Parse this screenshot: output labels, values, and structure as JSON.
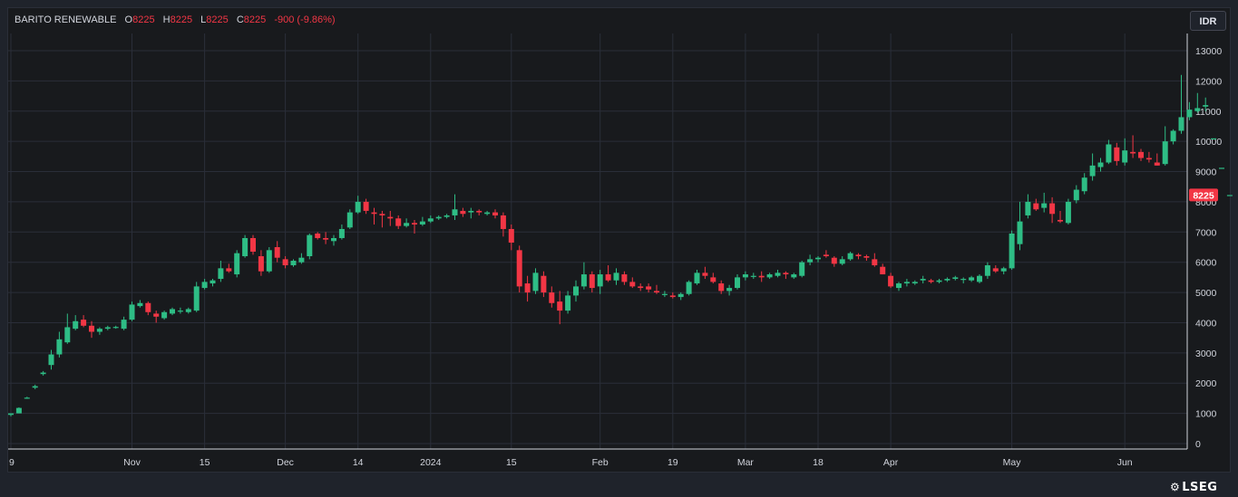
{
  "legend": {
    "symbol": "BARITO RENEWABLE",
    "o_label": "O",
    "o_value": "8225",
    "h_label": "H",
    "h_value": "8225",
    "l_label": "L",
    "l_value": "8225",
    "c_label": "C",
    "c_value": "8225",
    "change": "-900 (-9.86%)"
  },
  "currency_button": "IDR",
  "last_price_label": "8225",
  "brand": {
    "mark": "⚙",
    "text": "LSEG"
  },
  "colors": {
    "up": "#26a69a",
    "up_bright": "#2ebd85",
    "down": "#f23645",
    "background": "#181a1d",
    "grid": "#2a2e39",
    "text": "#d1d4dc"
  },
  "chart_data": {
    "type": "candlestick",
    "y_ticks": [
      "0",
      "1000",
      "2000",
      "3000",
      "4000",
      "5000",
      "6000",
      "7000",
      "8000",
      "9000",
      "10000",
      "11000",
      "12000",
      "13000"
    ],
    "ylim": [
      0,
      13500
    ],
    "x_ticks": [
      {
        "label": "9",
        "i": 0
      },
      {
        "label": "Nov",
        "i": 15
      },
      {
        "label": "15",
        "i": 24
      },
      {
        "label": "Dec",
        "i": 34
      },
      {
        "label": "14",
        "i": 43
      },
      {
        "label": "2024",
        "i": 52
      },
      {
        "label": "15",
        "i": 62
      },
      {
        "label": "Feb",
        "i": 73
      },
      {
        "label": "19",
        "i": 82
      },
      {
        "label": "Mar",
        "i": 91
      },
      {
        "label": "18",
        "i": 100
      },
      {
        "label": "Apr",
        "i": 109
      },
      {
        "label": "May",
        "i": 124
      },
      {
        "label": "Jun",
        "i": 138
      }
    ],
    "grid": true,
    "candles": [
      [
        950,
        1000,
        900,
        1000
      ],
      [
        1000,
        1200,
        1000,
        1180
      ],
      [
        1500,
        1550,
        1480,
        1520
      ],
      [
        1850,
        1950,
        1800,
        1900
      ],
      [
        2300,
        2400,
        2250,
        2350
      ],
      [
        2600,
        3100,
        2450,
        2950
      ],
      [
        2950,
        3700,
        2850,
        3450
      ],
      [
        3350,
        4300,
        3300,
        3850
      ],
      [
        3800,
        4250,
        3750,
        4050
      ],
      [
        4100,
        4250,
        3850,
        3900
      ],
      [
        3900,
        4050,
        3500,
        3700
      ],
      [
        3700,
        3850,
        3600,
        3800
      ],
      [
        3800,
        3900,
        3750,
        3850
      ],
      [
        3850,
        3900,
        3800,
        3860
      ],
      [
        3800,
        4200,
        3750,
        4100
      ],
      [
        4100,
        4700,
        4050,
        4600
      ],
      [
        4550,
        4750,
        4500,
        4650
      ],
      [
        4650,
        4700,
        4250,
        4350
      ],
      [
        4300,
        4400,
        4000,
        4200
      ],
      [
        4150,
        4400,
        4100,
        4350
      ],
      [
        4300,
        4500,
        4250,
        4450
      ],
      [
        4400,
        4500,
        4300,
        4400
      ],
      [
        4350,
        4500,
        4300,
        4450
      ],
      [
        4400,
        5350,
        4350,
        5200
      ],
      [
        5150,
        5450,
        5100,
        5350
      ],
      [
        5300,
        5450,
        5200,
        5400
      ],
      [
        5450,
        6050,
        5350,
        5800
      ],
      [
        5800,
        5950,
        5650,
        5700
      ],
      [
        5600,
        6400,
        5500,
        6300
      ],
      [
        6200,
        6900,
        6150,
        6800
      ],
      [
        6800,
        6900,
        6250,
        6350
      ],
      [
        6200,
        6400,
        5550,
        5700
      ],
      [
        5700,
        6500,
        5650,
        6400
      ],
      [
        6500,
        6700,
        6000,
        6150
      ],
      [
        6100,
        6200,
        5800,
        5900
      ],
      [
        5900,
        6100,
        5850,
        6050
      ],
      [
        6000,
        6300,
        5950,
        6150
      ],
      [
        6200,
        6950,
        6100,
        6900
      ],
      [
        6950,
        7000,
        6750,
        6800
      ],
      [
        6800,
        7000,
        6600,
        6750
      ],
      [
        6700,
        6900,
        6550,
        6800
      ],
      [
        6800,
        7250,
        6750,
        7100
      ],
      [
        7150,
        7750,
        7100,
        7650
      ],
      [
        7650,
        8200,
        7600,
        8000
      ],
      [
        8000,
        8100,
        7600,
        7700
      ],
      [
        7650,
        7800,
        7250,
        7600
      ],
      [
        7600,
        7700,
        7150,
        7550
      ],
      [
        7500,
        7700,
        7200,
        7450
      ],
      [
        7450,
        7550,
        7100,
        7200
      ],
      [
        7200,
        7450,
        7150,
        7300
      ],
      [
        7300,
        7400,
        6950,
        7250
      ],
      [
        7250,
        7500,
        7200,
        7350
      ],
      [
        7350,
        7550,
        7300,
        7450
      ],
      [
        7450,
        7550,
        7400,
        7500
      ],
      [
        7500,
        7600,
        7450,
        7550
      ],
      [
        7550,
        8250,
        7400,
        7750
      ],
      [
        7700,
        7800,
        7500,
        7600
      ],
      [
        7650,
        7800,
        7450,
        7700
      ],
      [
        7700,
        7750,
        7550,
        7650
      ],
      [
        7600,
        7700,
        7550,
        7650
      ],
      [
        7650,
        7750,
        7450,
        7550
      ],
      [
        7550,
        7650,
        6850,
        7100
      ],
      [
        7100,
        7250,
        6400,
        6650
      ],
      [
        6400,
        6550,
        5000,
        5200
      ],
      [
        5300,
        5550,
        4700,
        5000
      ],
      [
        5050,
        5800,
        4950,
        5650
      ],
      [
        5550,
        5700,
        4850,
        5000
      ],
      [
        5000,
        5200,
        4500,
        4650
      ],
      [
        4700,
        5050,
        3950,
        4400
      ],
      [
        4400,
        5050,
        4300,
        4900
      ],
      [
        4900,
        5400,
        4700,
        5200
      ],
      [
        5200,
        6000,
        5100,
        5600
      ],
      [
        5600,
        5700,
        5000,
        5150
      ],
      [
        5200,
        5750,
        4950,
        5600
      ],
      [
        5600,
        5900,
        5350,
        5400
      ],
      [
        5400,
        5800,
        5250,
        5650
      ],
      [
        5600,
        5700,
        5250,
        5350
      ],
      [
        5350,
        5500,
        5150,
        5200
      ],
      [
        5200,
        5300,
        5050,
        5150
      ],
      [
        5200,
        5300,
        5000,
        5100
      ],
      [
        5050,
        5250,
        4950,
        5000
      ],
      [
        4950,
        5050,
        4850,
        4950
      ],
      [
        4900,
        5000,
        4800,
        4850
      ],
      [
        4850,
        5000,
        4750,
        4950
      ],
      [
        4950,
        5400,
        4900,
        5350
      ],
      [
        5300,
        5750,
        5250,
        5650
      ],
      [
        5650,
        5850,
        5450,
        5550
      ],
      [
        5500,
        5650,
        5300,
        5350
      ],
      [
        5300,
        5400,
        4950,
        5050
      ],
      [
        5050,
        5250,
        4900,
        5150
      ],
      [
        5150,
        5600,
        5100,
        5500
      ],
      [
        5500,
        5700,
        5400,
        5600
      ],
      [
        5550,
        5650,
        5450,
        5550
      ],
      [
        5550,
        5700,
        5350,
        5500
      ],
      [
        5500,
        5650,
        5450,
        5600
      ],
      [
        5550,
        5750,
        5500,
        5650
      ],
      [
        5650,
        5700,
        5450,
        5600
      ],
      [
        5500,
        5650,
        5450,
        5600
      ],
      [
        5550,
        6050,
        5500,
        6000
      ],
      [
        6000,
        6250,
        5900,
        6100
      ],
      [
        6100,
        6200,
        6000,
        6150
      ],
      [
        6250,
        6400,
        6150,
        6200
      ],
      [
        6150,
        6200,
        5850,
        5950
      ],
      [
        5950,
        6200,
        5900,
        6100
      ],
      [
        6100,
        6350,
        6050,
        6300
      ],
      [
        6250,
        6300,
        6100,
        6200
      ],
      [
        6200,
        6250,
        6050,
        6150
      ],
      [
        6100,
        6300,
        5850,
        5900
      ],
      [
        5850,
        5950,
        5600,
        5600
      ],
      [
        5550,
        5650,
        5150,
        5200
      ],
      [
        5150,
        5350,
        5050,
        5300
      ],
      [
        5300,
        5450,
        5200,
        5350
      ],
      [
        5300,
        5400,
        5250,
        5350
      ],
      [
        5400,
        5550,
        5300,
        5450
      ],
      [
        5400,
        5450,
        5300,
        5350
      ],
      [
        5350,
        5450,
        5300,
        5400
      ],
      [
        5400,
        5500,
        5350,
        5450
      ],
      [
        5450,
        5550,
        5400,
        5500
      ],
      [
        5450,
        5500,
        5300,
        5450
      ],
      [
        5400,
        5550,
        5350,
        5500
      ],
      [
        5350,
        5600,
        5300,
        5550
      ],
      [
        5550,
        6000,
        5450,
        5900
      ],
      [
        5800,
        5900,
        5650,
        5700
      ],
      [
        5700,
        5850,
        5600,
        5800
      ],
      [
        5800,
        7050,
        5750,
        6950
      ],
      [
        6600,
        8000,
        6400,
        7350
      ],
      [
        7550,
        8250,
        7450,
        8000
      ],
      [
        7950,
        8100,
        7700,
        7750
      ],
      [
        7800,
        8300,
        7650,
        7950
      ],
      [
        7950,
        8150,
        7300,
        7600
      ],
      [
        7400,
        7700,
        7300,
        7350
      ],
      [
        7300,
        8100,
        7250,
        8000
      ],
      [
        8050,
        8550,
        7950,
        8400
      ],
      [
        8350,
        8950,
        8250,
        8800
      ],
      [
        8850,
        9600,
        8700,
        9200
      ],
      [
        9150,
        9450,
        9000,
        9300
      ],
      [
        9300,
        10050,
        9250,
        9900
      ],
      [
        9800,
        9950,
        9200,
        9350
      ],
      [
        9300,
        10100,
        9200,
        9700
      ],
      [
        9650,
        10200,
        9450,
        9600
      ],
      [
        9650,
        9750,
        9350,
        9450
      ],
      [
        9450,
        9650,
        9300,
        9400
      ],
      [
        9300,
        9600,
        9200,
        9200
      ],
      [
        9250,
        10500,
        9200,
        10000
      ],
      [
        10000,
        10400,
        9900,
        10350
      ],
      [
        10350,
        12200,
        10250,
        10800
      ],
      [
        10800,
        11300,
        10700,
        11050
      ],
      [
        11000,
        11600,
        10950,
        11100
      ],
      [
        11150,
        11450,
        11000,
        11200
      ],
      [
        10100,
        10100,
        10100,
        10100
      ],
      [
        9125,
        9125,
        9125,
        9125
      ],
      [
        8225,
        8225,
        8225,
        8225
      ]
    ]
  }
}
